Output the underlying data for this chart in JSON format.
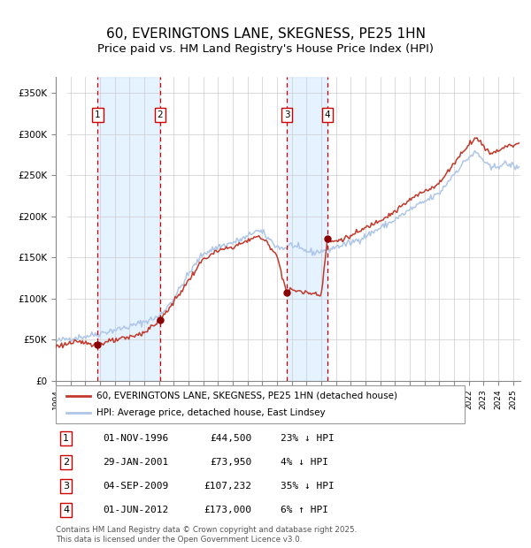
{
  "title": "60, EVERINGTONS LANE, SKEGNESS, PE25 1HN",
  "subtitle": "Price paid vs. HM Land Registry's House Price Index (HPI)",
  "legend_line1": "60, EVERINGTONS LANE, SKEGNESS, PE25 1HN (detached house)",
  "legend_line2": "HPI: Average price, detached house, East Lindsey",
  "footer": "Contains HM Land Registry data © Crown copyright and database right 2025.\nThis data is licensed under the Open Government Licence v3.0.",
  "transactions": [
    {
      "num": 1,
      "date": "01-NOV-1996",
      "price": 44500,
      "pct": "23%",
      "dir": "↓",
      "decimal_year": 1996.84
    },
    {
      "num": 2,
      "date": "29-JAN-2001",
      "price": 73950,
      "pct": "4%",
      "dir": "↓",
      "decimal_year": 2001.08
    },
    {
      "num": 3,
      "date": "04-SEP-2009",
      "price": 107232,
      "pct": "35%",
      "dir": "↓",
      "decimal_year": 2009.67
    },
    {
      "num": 4,
      "date": "01-JUN-2012",
      "price": 173000,
      "pct": "6%",
      "dir": "↑",
      "decimal_year": 2012.42
    }
  ],
  "hpi_color": "#aec6e8",
  "price_color": "#c0392b",
  "marker_color": "#8b0000",
  "vline_color": "#cc0000",
  "shade_color": "#ddeeff",
  "grid_color": "#cccccc",
  "background_color": "#ffffff",
  "hatch_color": "#bbbbbb",
  "ylim": [
    0,
    370000
  ],
  "xlim_start": 1994.0,
  "xlim_end": 2025.5,
  "title_fontsize": 11,
  "subtitle_fontsize": 9.5,
  "hpi_control_points": [
    [
      1994.0,
      48000
    ],
    [
      1995.0,
      52000
    ],
    [
      1996.0,
      54000
    ],
    [
      1997.0,
      58000
    ],
    [
      1998.0,
      62000
    ],
    [
      1999.0,
      66000
    ],
    [
      2000.0,
      72000
    ],
    [
      2001.0,
      78000
    ],
    [
      2002.0,
      100000
    ],
    [
      2003.0,
      130000
    ],
    [
      2004.0,
      155000
    ],
    [
      2005.0,
      163000
    ],
    [
      2006.0,
      168000
    ],
    [
      2007.0,
      175000
    ],
    [
      2007.5,
      183000
    ],
    [
      2008.0,
      180000
    ],
    [
      2008.5,
      172000
    ],
    [
      2009.0,
      163000
    ],
    [
      2009.5,
      161000
    ],
    [
      2010.0,
      166000
    ],
    [
      2010.5,
      160000
    ],
    [
      2011.0,
      158000
    ],
    [
      2011.5,
      156000
    ],
    [
      2012.0,
      158000
    ],
    [
      2012.5,
      160000
    ],
    [
      2013.0,
      163000
    ],
    [
      2014.0,
      168000
    ],
    [
      2015.0,
      176000
    ],
    [
      2016.0,
      186000
    ],
    [
      2017.0,
      196000
    ],
    [
      2018.0,
      208000
    ],
    [
      2019.0,
      218000
    ],
    [
      2020.0,
      228000
    ],
    [
      2021.0,
      252000
    ],
    [
      2022.0,
      272000
    ],
    [
      2022.5,
      278000
    ],
    [
      2023.0,
      268000
    ],
    [
      2023.5,
      258000
    ],
    [
      2024.0,
      262000
    ],
    [
      2024.5,
      264000
    ],
    [
      2025.0,
      262000
    ],
    [
      2025.4,
      258000
    ]
  ],
  "price_control_points": [
    [
      1994.0,
      42000
    ],
    [
      1995.0,
      46000
    ],
    [
      1996.0,
      47000
    ],
    [
      1996.84,
      44500
    ],
    [
      1997.0,
      45500
    ],
    [
      1998.0,
      49000
    ],
    [
      1999.0,
      53000
    ],
    [
      2000.0,
      59000
    ],
    [
      2001.08,
      73950
    ],
    [
      2002.0,
      96000
    ],
    [
      2003.0,
      122000
    ],
    [
      2004.0,
      148000
    ],
    [
      2005.0,
      158000
    ],
    [
      2006.0,
      163000
    ],
    [
      2007.0,
      170000
    ],
    [
      2007.5,
      176000
    ],
    [
      2008.0,
      173000
    ],
    [
      2008.5,
      165000
    ],
    [
      2009.0,
      152000
    ],
    [
      2009.67,
      107232
    ],
    [
      2009.8,
      109000
    ],
    [
      2010.0,
      111000
    ],
    [
      2010.5,
      109000
    ],
    [
      2011.0,
      107000
    ],
    [
      2011.5,
      107000
    ],
    [
      2012.0,
      105000
    ],
    [
      2012.42,
      173000
    ],
    [
      2012.5,
      169000
    ],
    [
      2013.0,
      170000
    ],
    [
      2014.0,
      176000
    ],
    [
      2015.0,
      186000
    ],
    [
      2016.0,
      196000
    ],
    [
      2017.0,
      206000
    ],
    [
      2018.0,
      220000
    ],
    [
      2019.0,
      231000
    ],
    [
      2020.0,
      240000
    ],
    [
      2021.0,
      265000
    ],
    [
      2022.0,
      288000
    ],
    [
      2022.5,
      296000
    ],
    [
      2023.0,
      286000
    ],
    [
      2023.5,
      276000
    ],
    [
      2024.0,
      281000
    ],
    [
      2024.5,
      285000
    ],
    [
      2025.0,
      287000
    ],
    [
      2025.4,
      289000
    ]
  ]
}
